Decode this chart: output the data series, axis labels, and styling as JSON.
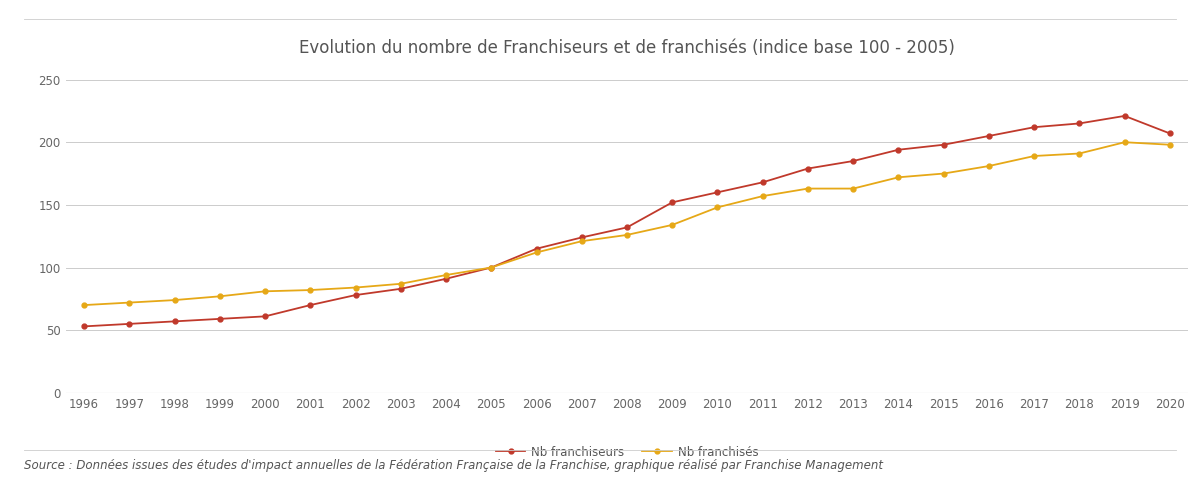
{
  "title": "Evolution du nombre de Franchiseurs et de franchisés (indice base 100 - 2005)",
  "source_text": "Source : Données issues des études d'impact annuelles de la Fédération Française de la Franchise, graphique réalisé par Franchise Management",
  "years": [
    1996,
    1997,
    1998,
    1999,
    2000,
    2001,
    2002,
    2003,
    2004,
    2005,
    2006,
    2007,
    2008,
    2009,
    2010,
    2011,
    2012,
    2013,
    2014,
    2015,
    2016,
    2017,
    2018,
    2019,
    2020
  ],
  "franchiseurs": [
    53,
    55,
    57,
    59,
    61,
    70,
    78,
    83,
    91,
    100,
    115,
    124,
    132,
    152,
    160,
    168,
    179,
    185,
    194,
    198,
    205,
    212,
    215,
    221,
    207
  ],
  "franchises": [
    70,
    72,
    74,
    77,
    81,
    82,
    84,
    87,
    94,
    100,
    112,
    121,
    126,
    134,
    148,
    157,
    163,
    163,
    172,
    175,
    181,
    189,
    191,
    200,
    198
  ],
  "franchiseurs_color": "#c0392b",
  "franchises_color": "#e6a817",
  "background_color": "#ffffff",
  "grid_color": "#cccccc",
  "ylim": [
    0,
    260
  ],
  "yticks": [
    0,
    50,
    100,
    150,
    200,
    250
  ],
  "legend_franchiseurs": "Nb franchiseurs",
  "legend_franchises": "Nb franchisés",
  "title_fontsize": 12,
  "tick_fontsize": 8.5,
  "source_fontsize": 8.5
}
